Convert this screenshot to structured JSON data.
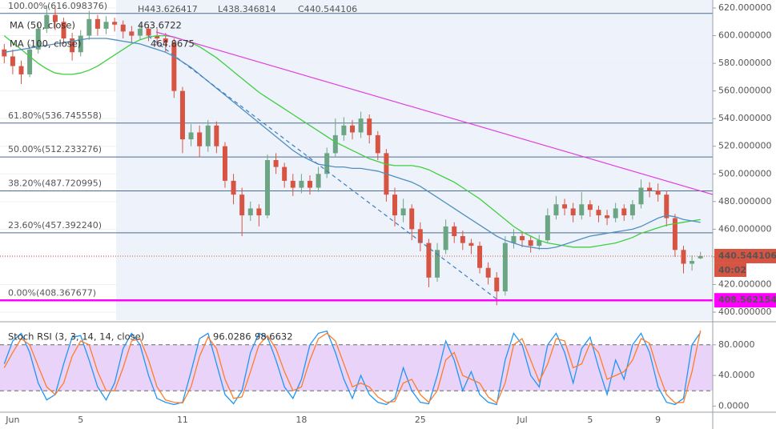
{
  "chart_data": [
    {
      "type": "candlestick",
      "header": [
        "H443.626417",
        "L438.346814",
        "C440.544106"
      ],
      "categories": [
        null,
        "Jun",
        null,
        null,
        null,
        null,
        null,
        null,
        null,
        "5",
        null,
        null,
        null,
        null,
        null,
        null,
        null,
        null,
        null,
        null,
        null,
        "11",
        null,
        null,
        null,
        null,
        null,
        null,
        null,
        null,
        null,
        null,
        null,
        null,
        null,
        "18",
        null,
        null,
        null,
        null,
        null,
        null,
        null,
        null,
        null,
        null,
        null,
        null,
        null,
        "25",
        null,
        null,
        null,
        null,
        null,
        null,
        null,
        null,
        null,
        null,
        null,
        "Jul",
        null,
        null,
        null,
        null,
        null,
        null,
        null,
        "5",
        null,
        null,
        null,
        null,
        null,
        null,
        null,
        "9",
        null,
        null,
        null,
        null,
        null
      ],
      "open": [
        590,
        585,
        578,
        572,
        590,
        605,
        615,
        610,
        598,
        588,
        600,
        612,
        605,
        610,
        608,
        603,
        600,
        605,
        600,
        598,
        595,
        560,
        525,
        530,
        520,
        535,
        520,
        495,
        485,
        470,
        475,
        470,
        510,
        505,
        495,
        490,
        495,
        490,
        500,
        515,
        528,
        535,
        530,
        540,
        528,
        515,
        485,
        470,
        475,
        460,
        450,
        425,
        445,
        462,
        455,
        450,
        448,
        432,
        425,
        415,
        450,
        455,
        452,
        448,
        452,
        470,
        478,
        475,
        470,
        478,
        474,
        470,
        468,
        475,
        470,
        478,
        490,
        488,
        485,
        468,
        445,
        435,
        438.9
      ],
      "high": [
        594,
        590,
        582,
        594,
        609,
        622,
        620,
        613,
        602,
        604,
        618,
        615,
        614,
        613,
        611,
        607,
        609,
        608,
        605,
        602,
        598,
        563,
        536,
        535,
        539,
        538,
        523,
        500,
        490,
        480,
        478,
        514,
        515,
        508,
        500,
        500,
        499,
        505,
        519,
        540,
        541,
        539,
        545,
        543,
        531,
        518,
        490,
        482,
        478,
        465,
        453,
        450,
        467,
        465,
        459,
        453,
        451,
        436,
        429,
        455,
        460,
        458,
        455,
        456,
        475,
        484,
        482,
        479,
        487,
        481,
        477,
        474,
        479,
        478,
        481,
        496,
        494,
        493,
        488,
        471,
        448,
        441,
        443.626417
      ],
      "low": [
        580,
        572,
        565,
        570,
        587,
        602,
        604,
        594,
        582,
        585,
        597,
        600,
        601,
        603,
        598,
        595,
        597,
        596,
        593,
        588,
        555,
        515,
        520,
        512,
        516,
        515,
        490,
        478,
        455,
        466,
        462,
        468,
        500,
        490,
        484,
        486,
        485,
        487,
        497,
        512,
        524,
        525,
        526,
        522,
        510,
        480,
        462,
        465,
        452,
        444,
        418,
        422,
        442,
        450,
        445,
        442,
        428,
        420,
        405,
        412,
        446,
        447,
        443,
        445,
        450,
        467,
        470,
        465,
        467,
        469,
        465,
        463,
        465,
        466,
        467,
        475,
        483,
        480,
        462,
        440,
        428,
        430,
        438.346814
      ],
      "close": [
        585,
        578,
        572,
        590,
        605,
        615,
        610,
        598,
        588,
        600,
        612,
        605,
        610,
        608,
        603,
        600,
        605,
        600,
        598,
        595,
        560,
        525,
        530,
        520,
        535,
        520,
        495,
        485,
        470,
        475,
        470,
        510,
        505,
        495,
        490,
        495,
        490,
        500,
        515,
        528,
        535,
        530,
        540,
        528,
        515,
        485,
        470,
        475,
        460,
        450,
        425,
        445,
        462,
        455,
        450,
        448,
        432,
        425,
        415,
        450,
        455,
        452,
        448,
        452,
        470,
        478,
        475,
        470,
        478,
        474,
        470,
        468,
        475,
        470,
        478,
        490,
        488,
        485,
        468,
        445,
        435,
        437,
        440.544106
      ],
      "up_color": "#6ba583",
      "down_color": "#d75442",
      "series": [
        {
          "name": "MA (50, close)",
          "value_label": "463.6722",
          "color": "#3fcf3f",
          "values": [
            600,
            595,
            590,
            585,
            580,
            576,
            573,
            572,
            572,
            573,
            575,
            578,
            582,
            586,
            590,
            594,
            597,
            599,
            600,
            600,
            599,
            597,
            595,
            592,
            588,
            584,
            579,
            574,
            569,
            564,
            559,
            555,
            551,
            547,
            543,
            539,
            535,
            531,
            527,
            523,
            520,
            517,
            514,
            511,
            509,
            507,
            506,
            506,
            506,
            505,
            503,
            500,
            497,
            494,
            490,
            486,
            482,
            477,
            472,
            467,
            462,
            458,
            455,
            452,
            450,
            449,
            448,
            447,
            447,
            447,
            448,
            449,
            450,
            452,
            454,
            457,
            459,
            461,
            463,
            464,
            465,
            466,
            467
          ]
        },
        {
          "name": "MA (100, close)",
          "value_label": "464.8675",
          "color": "#4f8fbf",
          "values": [
            588,
            589,
            590,
            591,
            592,
            593,
            594,
            595,
            596,
            597,
            598,
            598,
            598,
            597,
            596,
            595,
            594,
            592,
            590,
            588,
            585,
            581,
            577,
            572,
            567,
            562,
            557,
            552,
            547,
            542,
            537,
            532,
            527,
            522,
            517,
            513,
            510,
            507,
            506,
            505,
            505,
            504,
            504,
            503,
            502,
            500,
            498,
            496,
            494,
            491,
            487,
            483,
            479,
            475,
            471,
            467,
            463,
            459,
            455,
            452,
            450,
            448,
            447,
            446,
            446,
            447,
            449,
            451,
            453,
            455,
            456,
            457,
            458,
            459,
            460,
            462,
            465,
            468,
            470,
            469,
            467,
            466,
            464.8675
          ]
        }
      ],
      "fib_levels": [
        {
          "value": 616.098376,
          "label": "100.00%(616.098376)"
        },
        {
          "value": 536.745558,
          "label": "61.80%(536.745558)"
        },
        {
          "value": 512.233276,
          "label": "50.00%(512.233276)"
        },
        {
          "value": 487.720995,
          "label": "38.20%(487.720995)"
        },
        {
          "value": 457.39224,
          "label": "23.60%(457.392240)"
        },
        {
          "value": 408.367677,
          "label": "0.00%(408.367677)"
        }
      ],
      "current_price": 440.544106,
      "countdown": "40:02",
      "line_level": 408.562154,
      "ylim": [
        394.2,
        625.8
      ],
      "yticks": [
        {
          "value": 400,
          "label": "400.000000"
        },
        {
          "value": 420,
          "label": "420.000000"
        },
        {
          "value": 440,
          "label": "440.000000"
        },
        {
          "value": 460,
          "label": "460.000000"
        },
        {
          "value": 480,
          "label": "480.000000"
        },
        {
          "value": 500,
          "label": "500.000000"
        },
        {
          "value": 520,
          "label": "520.000000"
        },
        {
          "value": 540,
          "label": "540.000000"
        },
        {
          "value": 560,
          "label": "560.000000"
        },
        {
          "value": 580,
          "label": "580.000000"
        },
        {
          "value": 600,
          "label": "600.000000"
        },
        {
          "value": 620,
          "label": "620.000000"
        }
      ]
    },
    {
      "type": "line",
      "title": "Stoch RSI (3, 3, 14, 14, close)",
      "series": [
        {
          "value_label": "96.0286",
          "color": "#2196f3",
          "values": [
            55,
            85,
            95,
            70,
            30,
            8,
            15,
            55,
            90,
            92,
            60,
            25,
            8,
            30,
            75,
            95,
            80,
            40,
            10,
            5,
            2,
            5,
            45,
            88,
            95,
            55,
            15,
            3,
            20,
            70,
            95,
            90,
            60,
            25,
            10,
            35,
            80,
            95,
            98,
            70,
            35,
            10,
            40,
            15,
            5,
            2,
            10,
            50,
            20,
            5,
            3,
            40,
            85,
            60,
            20,
            45,
            15,
            5,
            2,
            60,
            95,
            80,
            40,
            25,
            80,
            95,
            70,
            30,
            75,
            90,
            50,
            15,
            60,
            35,
            80,
            95,
            70,
            25,
            5,
            2,
            10,
            80,
            96.0286
          ]
        },
        {
          "value_label": "98.6632",
          "color": "#ff7c2a",
          "values": [
            50,
            70,
            88,
            80,
            52,
            25,
            15,
            30,
            65,
            85,
            80,
            45,
            20,
            20,
            50,
            85,
            88,
            60,
            25,
            8,
            5,
            4,
            25,
            65,
            90,
            75,
            35,
            10,
            12,
            45,
            80,
            92,
            75,
            45,
            20,
            25,
            60,
            88,
            95,
            85,
            55,
            25,
            30,
            25,
            12,
            5,
            6,
            30,
            35,
            15,
            5,
            20,
            60,
            70,
            40,
            35,
            30,
            12,
            4,
            30,
            80,
            88,
            60,
            32,
            55,
            88,
            85,
            50,
            55,
            82,
            70,
            35,
            40,
            45,
            60,
            88,
            82,
            45,
            15,
            4,
            5,
            45,
            98.6632
          ]
        }
      ],
      "bands": [
        20,
        80
      ],
      "ylim": [
        -8,
        108
      ],
      "yticks": [
        {
          "value": 0,
          "label": "0.0000"
        },
        {
          "value": 40,
          "label": "40.0000"
        },
        {
          "value": 80,
          "label": "80.0000"
        }
      ]
    }
  ]
}
